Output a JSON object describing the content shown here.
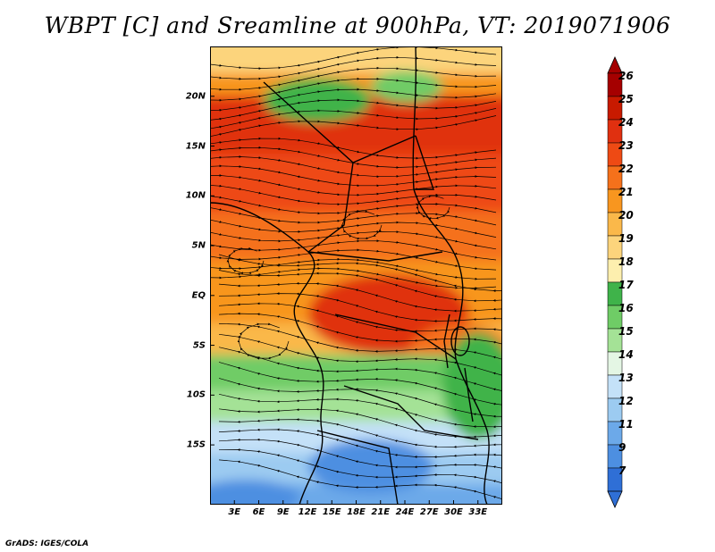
{
  "title": "WBPT [C] and Sreamline at 900hPa, VT: 2019071906",
  "footer": "GrADS: IGES/COLA",
  "map": {
    "lon_range": [
      0,
      36
    ],
    "lat_range": [
      -21,
      25
    ],
    "lat_ticks": [
      {
        "value": 20,
        "label": "20N"
      },
      {
        "value": 15,
        "label": "15N"
      },
      {
        "value": 10,
        "label": "10N"
      },
      {
        "value": 5,
        "label": "5N"
      },
      {
        "value": 0,
        "label": "EQ"
      },
      {
        "value": -5,
        "label": "5S"
      },
      {
        "value": -10,
        "label": "10S"
      },
      {
        "value": -15,
        "label": "15S"
      }
    ],
    "lon_ticks": [
      {
        "value": 3,
        "label": "3E"
      },
      {
        "value": 6,
        "label": "6E"
      },
      {
        "value": 9,
        "label": "9E"
      },
      {
        "value": 12,
        "label": "12E"
      },
      {
        "value": 15,
        "label": "15E"
      },
      {
        "value": 18,
        "label": "18E"
      },
      {
        "value": 21,
        "label": "21E"
      },
      {
        "value": 24,
        "label": "24E"
      },
      {
        "value": 27,
        "label": "27E"
      },
      {
        "value": 30,
        "label": "30E"
      },
      {
        "value": 33,
        "label": "33E"
      }
    ]
  },
  "colorbar": {
    "labels": [
      "26",
      "25",
      "24",
      "23",
      "22",
      "21",
      "20",
      "19",
      "18",
      "17",
      "16",
      "15",
      "14",
      "13",
      "12",
      "11",
      "9",
      "7"
    ],
    "colors": [
      "#a50000",
      "#c81a00",
      "#e03010",
      "#ee4a14",
      "#f5711b",
      "#f8961f",
      "#fab84a",
      "#fcd47c",
      "#fdefae",
      "#3fb34a",
      "#6fcc66",
      "#a4e296",
      "#e4f6e4",
      "#c4e1f8",
      "#9ccbf1",
      "#6ca9e9",
      "#4d8fe1",
      "#2f6fd6"
    ]
  },
  "legend_icons": {
    "up": "triangle-up-icon",
    "down": "triangle-down-icon"
  }
}
